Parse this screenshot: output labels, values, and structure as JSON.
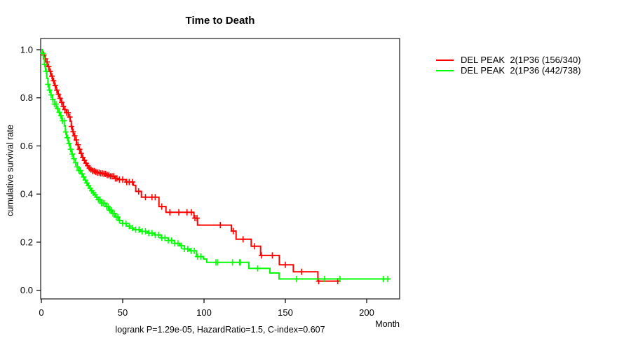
{
  "figure": {
    "title": "Time to Death",
    "x_axis_label": "Month",
    "y_axis_label": "cumulative survival rate",
    "footnote": "logrank P=1.29e-05, HazardRatio=1.5, C-index=0.607"
  },
  "legend": {
    "items": [
      {
        "label": "DEL PEAK  2(1P36 (156/340)",
        "color": "#ff0000",
        "events_over_total": "156/340"
      },
      {
        "label": "DEL PEAK  2(1P36 (442/738)",
        "color": "#00ff00",
        "events_over_total": "442/738"
      }
    ]
  },
  "chart_data": {
    "type": "line",
    "subtype": "kaplan-meier-step-curves",
    "title": "Time to Death",
    "xlabel": "Month",
    "ylabel": "cumulative survival rate",
    "xlim": [
      0,
      220
    ],
    "ylim": [
      0,
      1
    ],
    "x_ticks": [
      0,
      50,
      100,
      150,
      200
    ],
    "y_ticks": [
      0.0,
      0.2,
      0.4,
      0.6,
      0.8,
      1.0
    ],
    "grid": false,
    "legend_position": "right-outside",
    "annotation": "logrank P=1.29e-05, HazardRatio=1.5, C-index=0.607",
    "series": [
      {
        "name": "DEL PEAK  2(1P36 (156/340)",
        "color": "#ff0000",
        "points": [
          [
            0,
            1.0
          ],
          [
            0.6,
            0.99
          ],
          [
            1.2,
            0.978
          ],
          [
            2,
            0.962
          ],
          [
            2.6,
            0.949
          ],
          [
            3.6,
            0.93
          ],
          [
            4.7,
            0.91
          ],
          [
            5.8,
            0.89
          ],
          [
            6.9,
            0.871
          ],
          [
            8,
            0.851
          ],
          [
            9.1,
            0.832
          ],
          [
            10.1,
            0.815
          ],
          [
            11.2,
            0.798
          ],
          [
            12.3,
            0.781
          ],
          [
            13.4,
            0.764
          ],
          [
            14.4,
            0.751
          ],
          [
            15.5,
            0.738
          ],
          [
            16.6,
            0.72
          ],
          [
            17.7,
            0.703
          ],
          [
            18.4,
            0.681
          ],
          [
            19.1,
            0.659
          ],
          [
            19.8,
            0.642
          ],
          [
            20.6,
            0.625
          ],
          [
            21.6,
            0.605
          ],
          [
            22.7,
            0.586
          ],
          [
            23.8,
            0.569
          ],
          [
            24.9,
            0.552
          ],
          [
            26,
            0.54
          ],
          [
            27,
            0.528
          ],
          [
            28.1,
            0.518
          ],
          [
            29.2,
            0.508
          ],
          [
            30.2,
            0.502
          ],
          [
            31.3,
            0.496
          ],
          [
            32.7,
            0.492
          ],
          [
            34.2,
            0.489
          ],
          [
            36,
            0.486
          ],
          [
            37.8,
            0.484
          ],
          [
            40,
            0.479
          ],
          [
            42.1,
            0.474
          ],
          [
            45,
            0.465
          ],
          [
            47.8,
            0.46
          ],
          [
            52,
            0.45
          ],
          [
            56.5,
            0.436
          ],
          [
            58,
            0.411
          ],
          [
            61.5,
            0.387
          ],
          [
            72.3,
            0.348
          ],
          [
            76.6,
            0.324
          ],
          [
            93.8,
            0.3
          ],
          [
            96,
            0.271
          ],
          [
            116.8,
            0.246
          ],
          [
            119.7,
            0.212
          ],
          [
            129,
            0.183
          ],
          [
            134.8,
            0.145
          ],
          [
            146.3,
            0.106
          ],
          [
            154.9,
            0.077
          ],
          [
            170,
            0.038
          ],
          [
            183.6,
            0.038
          ]
        ],
        "censor_months": [
          1.5,
          2.5,
          3.5,
          4.5,
          5.5,
          6.5,
          7.5,
          8.5,
          9.5,
          10.5,
          11.5,
          12.5,
          13.5,
          14.5,
          15.5,
          16.5,
          17.5,
          18.5,
          19.5,
          20.5,
          21.5,
          22.5,
          23.5,
          24.5,
          25.5,
          26.5,
          27.5,
          28.5,
          29.5,
          30.5,
          31.5,
          32.5,
          33.5,
          34.5,
          35.5,
          36.5,
          37.5,
          38.5,
          39.5,
          40.5,
          41.5,
          42.5,
          43.5,
          44.5,
          45.5,
          46.5,
          48,
          50,
          52.5,
          54,
          56,
          59.8,
          64,
          68,
          70,
          74,
          79,
          84.5,
          89.5,
          92.2,
          94.4,
          95.7,
          110,
          118,
          124,
          131,
          135.3,
          142,
          150,
          160,
          170.5,
          182.2
        ]
      },
      {
        "name": "DEL PEAK  2(1P36 (442/738)",
        "color": "#00ff00",
        "points": [
          [
            0,
            1.0
          ],
          [
            0.6,
            0.985
          ],
          [
            1.2,
            0.968
          ],
          [
            1.9,
            0.939
          ],
          [
            2.6,
            0.91
          ],
          [
            3.3,
            0.881
          ],
          [
            4,
            0.856
          ],
          [
            4.7,
            0.832
          ],
          [
            5.8,
            0.812
          ],
          [
            6.9,
            0.793
          ],
          [
            8,
            0.774
          ],
          [
            9.1,
            0.755
          ],
          [
            10.1,
            0.74
          ],
          [
            11.2,
            0.726
          ],
          [
            12.6,
            0.705
          ],
          [
            14.1,
            0.683
          ],
          [
            14.8,
            0.658
          ],
          [
            15.5,
            0.634
          ],
          [
            16.6,
            0.61
          ],
          [
            17.7,
            0.586
          ],
          [
            18.7,
            0.566
          ],
          [
            19.8,
            0.547
          ],
          [
            20.9,
            0.53
          ],
          [
            22,
            0.513
          ],
          [
            23,
            0.498
          ],
          [
            24.1,
            0.484
          ],
          [
            25.2,
            0.471
          ],
          [
            26.3,
            0.458
          ],
          [
            27.4,
            0.446
          ],
          [
            28.4,
            0.435
          ],
          [
            29.5,
            0.424
          ],
          [
            30.6,
            0.414
          ],
          [
            31.7,
            0.405
          ],
          [
            32.8,
            0.397
          ],
          [
            33.8,
            0.387
          ],
          [
            34.9,
            0.377
          ],
          [
            37,
            0.362
          ],
          [
            39.2,
            0.348
          ],
          [
            41.4,
            0.333
          ],
          [
            43.5,
            0.319
          ],
          [
            45.6,
            0.304
          ],
          [
            47.8,
            0.29
          ],
          [
            50,
            0.278
          ],
          [
            52.2,
            0.267
          ],
          [
            54.3,
            0.259
          ],
          [
            56.5,
            0.252
          ],
          [
            60.8,
            0.245
          ],
          [
            65.1,
            0.238
          ],
          [
            69.4,
            0.23
          ],
          [
            73.7,
            0.218
          ],
          [
            78,
            0.207
          ],
          [
            82,
            0.195
          ],
          [
            85,
            0.185
          ],
          [
            88,
            0.172
          ],
          [
            91,
            0.164
          ],
          [
            95.3,
            0.14
          ],
          [
            99.6,
            0.13
          ],
          [
            101.7,
            0.116
          ],
          [
            127.6,
            0.091
          ],
          [
            140.5,
            0.072
          ],
          [
            146.1,
            0.047
          ],
          [
            213.8,
            0.047
          ]
        ],
        "censor_months": [
          1,
          2,
          3,
          4,
          5,
          6,
          7,
          8,
          9,
          10,
          11,
          12,
          13,
          14,
          15,
          16,
          17,
          18,
          19,
          20,
          21,
          22,
          23,
          24,
          25,
          26,
          27,
          28,
          29,
          30,
          31,
          32,
          33,
          34,
          35,
          36,
          37,
          38,
          39,
          40,
          41,
          42,
          43,
          44,
          45,
          46,
          47,
          48,
          50,
          52,
          54,
          56,
          58,
          60,
          62,
          64,
          66,
          68,
          70,
          72,
          74,
          76,
          78,
          80,
          82,
          84,
          86,
          88,
          90,
          92,
          94,
          96,
          98,
          107.3,
          108.2,
          117.5,
          121.8,
          122.4,
          133,
          156.9,
          174.1,
          183.6,
          210.2,
          213
        ]
      }
    ]
  }
}
